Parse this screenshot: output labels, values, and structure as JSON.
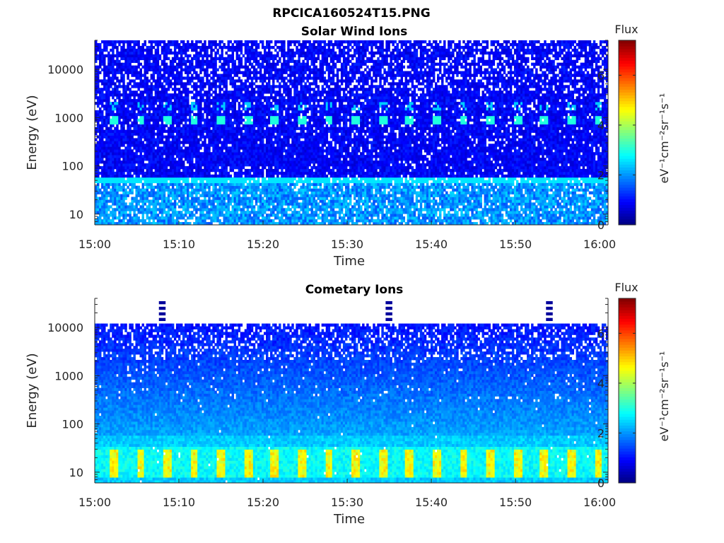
{
  "figure_title": "RPCICA160524T15.PNG",
  "chart_data": [
    {
      "type": "heatmap",
      "title": "Solar Wind Ions",
      "xlabel": "Time",
      "ylabel": "Energy (eV)",
      "x_ticks": [
        "15:00",
        "15:10",
        "15:20",
        "15:30",
        "15:40",
        "15:50",
        "16:00"
      ],
      "x_range": [
        "15:00",
        "16:01"
      ],
      "y_scale": "log",
      "y_ticks": [
        "10",
        "100",
        "1000",
        "10000"
      ],
      "y_range": [
        6,
        40000
      ],
      "colorbar": {
        "label": "Flux",
        "units": "eV⁻¹cm⁻²sr⁻¹s⁻¹",
        "ticks": [
          "0",
          "2",
          "4",
          "6"
        ],
        "range": [
          0,
          7.4
        ],
        "colormap": "jet"
      },
      "features": {
        "background_flux": 0.9,
        "periodic_peak_energy_eV": 900,
        "periodic_peak_flux": 3.0,
        "periodic_peak_interval_min": 3.2,
        "low_energy_band_eV": [
          6,
          60
        ],
        "low_energy_flux": 2.0
      }
    },
    {
      "type": "heatmap",
      "title": "Cometary Ions",
      "xlabel": "Time",
      "ylabel": "Energy (eV)",
      "x_ticks": [
        "15:00",
        "15:10",
        "15:20",
        "15:30",
        "15:40",
        "15:50",
        "16:00"
      ],
      "x_range": [
        "15:00",
        "16:01"
      ],
      "y_scale": "log",
      "y_ticks": [
        "10",
        "100",
        "1000",
        "10000"
      ],
      "y_range": [
        6,
        40000
      ],
      "colorbar": {
        "label": "Flux",
        "units": "eV⁻¹cm⁻²sr⁻¹s⁻¹",
        "ticks": [
          "0",
          "2",
          "4",
          "6"
        ],
        "range": [
          0,
          7.4
        ],
        "colormap": "jet"
      },
      "features": {
        "upper_energy_cutoff_eV": 12000,
        "background_flux": 0.8,
        "periodic_peak_energy_eV": [
          10,
          30
        ],
        "periodic_peak_flux": 4.6,
        "periodic_peak_interval_min": 3.2,
        "sparse_high_energy_spikes": [
          "15:08",
          "15:35",
          "15:54"
        ]
      }
    }
  ]
}
